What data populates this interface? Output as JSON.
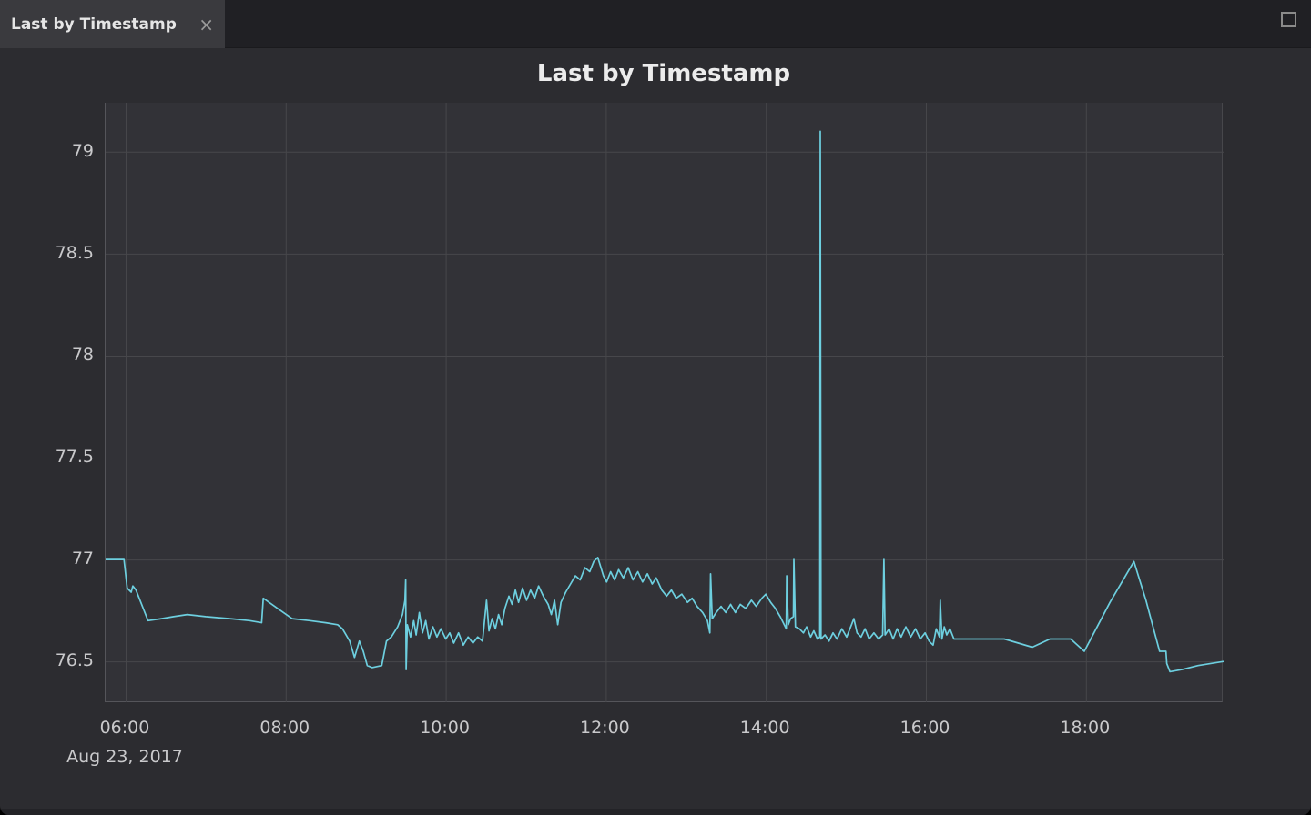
{
  "window": {
    "tab": {
      "label": "Last by Timestamp",
      "close_glyph": "×"
    },
    "maximize_icon": "square-outline"
  },
  "colors": {
    "outer_bg": "#2c2c30",
    "tabbar_bg": "#202024",
    "active_tab_bg": "#3a3a3e",
    "plot_bg": "#323237",
    "grid": "#47474b",
    "axis": "#55555a",
    "line": "#6dcfdf",
    "title_text": "#ececec",
    "tick_text": "#c9c9cb"
  },
  "chart_data": {
    "type": "line",
    "title": "Last by Timestamp",
    "xlabel": "",
    "ylabel": "",
    "x_unit": "time-of-day-hours",
    "x_date_label": "Aug 23, 2017",
    "grid": true,
    "legend": "none",
    "xlim": [
      5.75,
      19.72
    ],
    "ylim": [
      76.3,
      79.24
    ],
    "x_ticks": [
      {
        "t": 6,
        "label": "06:00"
      },
      {
        "t": 8,
        "label": "08:00"
      },
      {
        "t": 10,
        "label": "10:00"
      },
      {
        "t": 12,
        "label": "12:00"
      },
      {
        "t": 14,
        "label": "14:00"
      },
      {
        "t": 16,
        "label": "16:00"
      },
      {
        "t": 18,
        "label": "18:00"
      }
    ],
    "y_ticks": [
      {
        "v": 79,
        "label": "79"
      },
      {
        "v": 78.5,
        "label": "78.5"
      },
      {
        "v": 78,
        "label": "78"
      },
      {
        "v": 77.5,
        "label": "77.5"
      },
      {
        "v": 77,
        "label": "77"
      },
      {
        "v": 76.5,
        "label": "76.5"
      }
    ],
    "series": [
      {
        "name": "Last by Timestamp",
        "color": "#6dcfdf",
        "points": [
          [
            5.75,
            77.0
          ],
          [
            5.98,
            77.0
          ],
          [
            6.02,
            76.86
          ],
          [
            6.07,
            76.84
          ],
          [
            6.09,
            76.87
          ],
          [
            6.13,
            76.85
          ],
          [
            6.28,
            76.7
          ],
          [
            6.45,
            76.71
          ],
          [
            6.6,
            76.72
          ],
          [
            6.77,
            76.73
          ],
          [
            7.0,
            76.72
          ],
          [
            7.3,
            76.71
          ],
          [
            7.55,
            76.7
          ],
          [
            7.7,
            76.69
          ],
          [
            7.72,
            76.81
          ],
          [
            7.9,
            76.76
          ],
          [
            8.08,
            76.71
          ],
          [
            8.3,
            76.7
          ],
          [
            8.5,
            76.69
          ],
          [
            8.65,
            76.68
          ],
          [
            8.71,
            76.66
          ],
          [
            8.8,
            76.6
          ],
          [
            8.86,
            76.52
          ],
          [
            8.92,
            76.6
          ],
          [
            8.97,
            76.55
          ],
          [
            9.02,
            76.48
          ],
          [
            9.08,
            76.47
          ],
          [
            9.2,
            76.48
          ],
          [
            9.26,
            76.6
          ],
          [
            9.32,
            76.62
          ],
          [
            9.4,
            76.67
          ],
          [
            9.46,
            76.73
          ],
          [
            9.49,
            76.8
          ],
          [
            9.5,
            76.9
          ],
          [
            9.505,
            76.46
          ],
          [
            9.52,
            76.68
          ],
          [
            9.56,
            76.62
          ],
          [
            9.6,
            76.7
          ],
          [
            9.63,
            76.63
          ],
          [
            9.67,
            76.74
          ],
          [
            9.71,
            76.64
          ],
          [
            9.75,
            76.7
          ],
          [
            9.79,
            76.61
          ],
          [
            9.84,
            76.67
          ],
          [
            9.89,
            76.62
          ],
          [
            9.94,
            76.66
          ],
          [
            10.0,
            76.61
          ],
          [
            10.05,
            76.64
          ],
          [
            10.1,
            76.59
          ],
          [
            10.16,
            76.64
          ],
          [
            10.22,
            76.58
          ],
          [
            10.28,
            76.62
          ],
          [
            10.34,
            76.59
          ],
          [
            10.4,
            76.62
          ],
          [
            10.46,
            76.6
          ],
          [
            10.51,
            76.8
          ],
          [
            10.54,
            76.65
          ],
          [
            10.58,
            76.71
          ],
          [
            10.62,
            76.66
          ],
          [
            10.66,
            76.73
          ],
          [
            10.7,
            76.68
          ],
          [
            10.74,
            76.76
          ],
          [
            10.79,
            76.82
          ],
          [
            10.83,
            76.78
          ],
          [
            10.87,
            76.85
          ],
          [
            10.91,
            76.79
          ],
          [
            10.96,
            76.86
          ],
          [
            11.01,
            76.8
          ],
          [
            11.06,
            76.85
          ],
          [
            11.11,
            76.81
          ],
          [
            11.16,
            76.87
          ],
          [
            11.22,
            76.82
          ],
          [
            11.28,
            76.78
          ],
          [
            11.32,
            76.73
          ],
          [
            11.36,
            76.8
          ],
          [
            11.4,
            76.68
          ],
          [
            11.44,
            76.79
          ],
          [
            11.5,
            76.84
          ],
          [
            11.56,
            76.88
          ],
          [
            11.62,
            76.92
          ],
          [
            11.68,
            76.9
          ],
          [
            11.74,
            76.96
          ],
          [
            11.8,
            76.94
          ],
          [
            11.85,
            76.99
          ],
          [
            11.9,
            77.01
          ],
          [
            11.94,
            76.96
          ],
          [
            11.97,
            76.92
          ],
          [
            12.01,
            76.89
          ],
          [
            12.06,
            76.94
          ],
          [
            12.11,
            76.9
          ],
          [
            12.16,
            76.95
          ],
          [
            12.22,
            76.91
          ],
          [
            12.28,
            76.96
          ],
          [
            12.34,
            76.9
          ],
          [
            12.4,
            76.94
          ],
          [
            12.46,
            76.89
          ],
          [
            12.52,
            76.93
          ],
          [
            12.58,
            76.88
          ],
          [
            12.63,
            76.91
          ],
          [
            12.7,
            76.85
          ],
          [
            12.76,
            76.82
          ],
          [
            12.82,
            76.85
          ],
          [
            12.88,
            76.81
          ],
          [
            12.95,
            76.83
          ],
          [
            13.02,
            76.79
          ],
          [
            13.08,
            76.81
          ],
          [
            13.14,
            76.77
          ],
          [
            13.21,
            76.74
          ],
          [
            13.27,
            76.7
          ],
          [
            13.3,
            76.64
          ],
          [
            13.31,
            76.93
          ],
          [
            13.33,
            76.71
          ],
          [
            13.38,
            76.74
          ],
          [
            13.44,
            76.77
          ],
          [
            13.5,
            76.74
          ],
          [
            13.56,
            76.78
          ],
          [
            13.62,
            76.74
          ],
          [
            13.68,
            76.78
          ],
          [
            13.75,
            76.76
          ],
          [
            13.82,
            76.8
          ],
          [
            13.88,
            76.77
          ],
          [
            13.95,
            76.81
          ],
          [
            14.0,
            76.83
          ],
          [
            14.06,
            76.79
          ],
          [
            14.12,
            76.76
          ],
          [
            14.18,
            76.72
          ],
          [
            14.23,
            76.68
          ],
          [
            14.255,
            76.66
          ],
          [
            14.26,
            76.92
          ],
          [
            14.28,
            76.68
          ],
          [
            14.31,
            76.71
          ],
          [
            14.345,
            76.72
          ],
          [
            14.35,
            77.0
          ],
          [
            14.37,
            76.67
          ],
          [
            14.42,
            76.66
          ],
          [
            14.47,
            76.64
          ],
          [
            14.51,
            76.67
          ],
          [
            14.56,
            76.62
          ],
          [
            14.6,
            76.65
          ],
          [
            14.645,
            76.61
          ],
          [
            14.675,
            76.62
          ],
          [
            14.68,
            79.1
          ],
          [
            14.69,
            76.61
          ],
          [
            14.74,
            76.63
          ],
          [
            14.79,
            76.6
          ],
          [
            14.84,
            76.64
          ],
          [
            14.89,
            76.61
          ],
          [
            14.95,
            76.66
          ],
          [
            15.01,
            76.62
          ],
          [
            15.07,
            76.68
          ],
          [
            15.1,
            76.71
          ],
          [
            15.14,
            76.64
          ],
          [
            15.19,
            76.62
          ],
          [
            15.24,
            76.66
          ],
          [
            15.29,
            76.61
          ],
          [
            15.35,
            76.64
          ],
          [
            15.41,
            76.61
          ],
          [
            15.46,
            76.63
          ],
          [
            15.475,
            77.0
          ],
          [
            15.49,
            76.63
          ],
          [
            15.54,
            76.66
          ],
          [
            15.59,
            76.61
          ],
          [
            15.64,
            76.66
          ],
          [
            15.69,
            76.62
          ],
          [
            15.75,
            76.67
          ],
          [
            15.81,
            76.62
          ],
          [
            15.87,
            76.66
          ],
          [
            15.93,
            76.61
          ],
          [
            15.99,
            76.64
          ],
          [
            16.04,
            76.6
          ],
          [
            16.09,
            76.58
          ],
          [
            16.13,
            76.66
          ],
          [
            16.17,
            76.62
          ],
          [
            16.18,
            76.8
          ],
          [
            16.2,
            76.61
          ],
          [
            16.23,
            76.67
          ],
          [
            16.26,
            76.63
          ],
          [
            16.3,
            76.66
          ],
          [
            16.35,
            76.61
          ],
          [
            16.6,
            76.61
          ],
          [
            16.98,
            76.61
          ],
          [
            17.33,
            76.57
          ],
          [
            17.55,
            76.61
          ],
          [
            17.81,
            76.61
          ],
          [
            17.98,
            76.55
          ],
          [
            18.1,
            76.64
          ],
          [
            18.3,
            76.79
          ],
          [
            18.6,
            76.99
          ],
          [
            18.75,
            76.8
          ],
          [
            18.92,
            76.55
          ],
          [
            19.0,
            76.55
          ],
          [
            19.01,
            76.49
          ],
          [
            19.05,
            76.45
          ],
          [
            19.2,
            76.46
          ],
          [
            19.4,
            76.48
          ],
          [
            19.72,
            76.5
          ]
        ]
      }
    ]
  }
}
